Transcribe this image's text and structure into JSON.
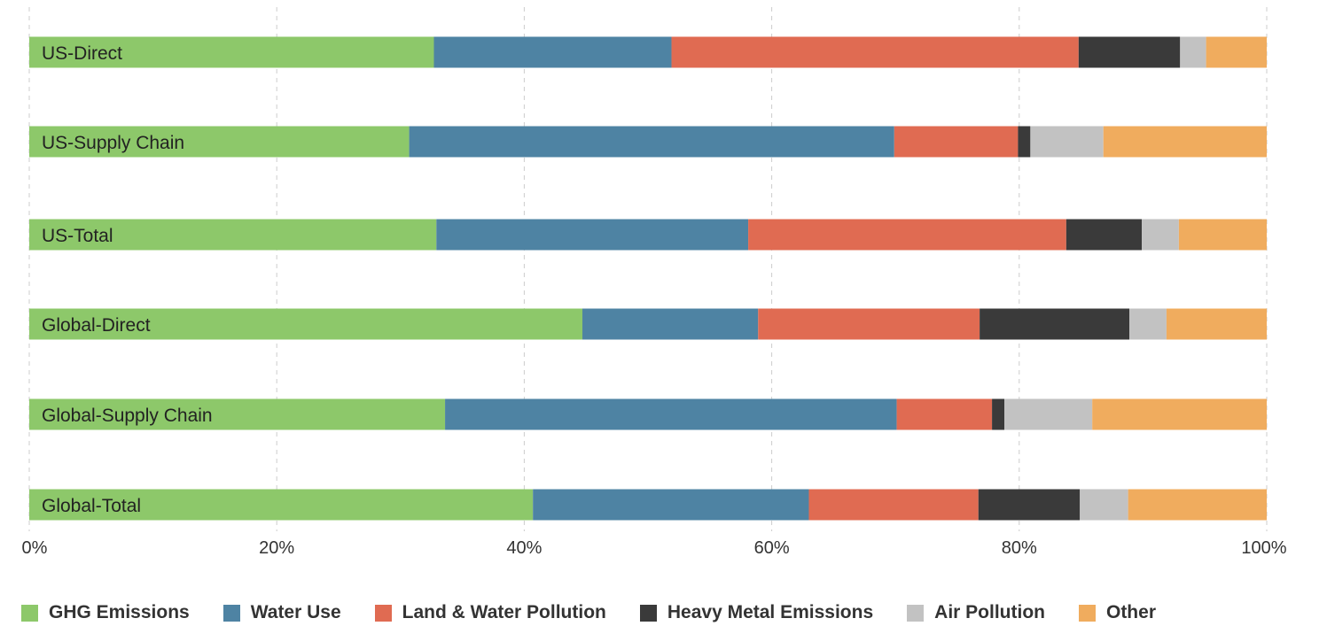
{
  "chart_data": {
    "type": "bar",
    "orientation": "horizontal",
    "stacked": "percent",
    "categories": [
      "US-Direct",
      "US-Supply Chain",
      "US-Total",
      "Global-Direct",
      "Global-Supply Chain",
      "Global-Total"
    ],
    "series": [
      {
        "name": "GHG Emissions",
        "color": "#8dc86a",
        "values": [
          32.7,
          30.7,
          32.9,
          44.7,
          33.6,
          40.7
        ]
      },
      {
        "name": "Water Use",
        "color": "#4e83a3",
        "values": [
          19.2,
          39.2,
          25.2,
          14.2,
          36.5,
          22.3
        ]
      },
      {
        "name": "Land & Water Pollution",
        "color": "#e06b52",
        "values": [
          32.9,
          10.0,
          25.7,
          17.9,
          7.7,
          13.7
        ]
      },
      {
        "name": "Heavy Metal Emissions",
        "color": "#3a3a3a",
        "values": [
          8.2,
          1.0,
          6.1,
          12.1,
          1.0,
          8.2
        ]
      },
      {
        "name": "Air Pollution",
        "color": "#c2c2c2",
        "values": [
          2.1,
          5.9,
          3.0,
          3.0,
          7.1,
          3.9
        ]
      },
      {
        "name": "Other",
        "color": "#f0ac5e",
        "values": [
          4.9,
          13.2,
          7.1,
          8.1,
          14.1,
          11.2
        ]
      }
    ],
    "xlim": [
      0,
      100
    ],
    "x_ticks": [
      "0%",
      "20%",
      "40%",
      "60%",
      "80%",
      "100%"
    ],
    "grid": "vertical dashed",
    "legend_position": "bottom",
    "xlabel": "",
    "ylabel": "",
    "title": ""
  }
}
